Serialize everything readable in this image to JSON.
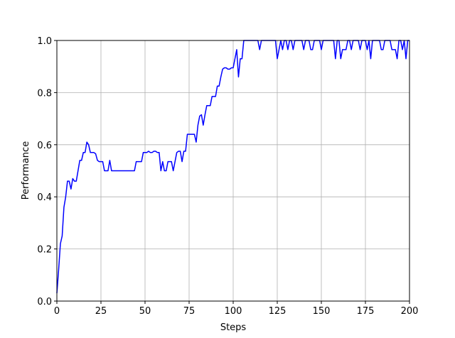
{
  "chart_data": {
    "type": "line",
    "xlabel": "Steps",
    "ylabel": "Performance",
    "x": [
      0,
      1,
      2,
      3,
      4,
      5,
      6,
      7,
      8,
      9,
      10,
      11,
      12,
      13,
      14,
      15,
      16,
      17,
      18,
      19,
      20,
      21,
      22,
      23,
      24,
      25,
      26,
      27,
      28,
      29,
      30,
      31,
      32,
      33,
      34,
      35,
      36,
      37,
      38,
      39,
      40,
      41,
      42,
      43,
      44,
      45,
      46,
      47,
      48,
      49,
      50,
      51,
      52,
      53,
      54,
      55,
      56,
      57,
      58,
      59,
      60,
      61,
      62,
      63,
      64,
      65,
      66,
      67,
      68,
      69,
      70,
      71,
      72,
      73,
      74,
      75,
      76,
      77,
      78,
      79,
      80,
      81,
      82,
      83,
      84,
      85,
      86,
      87,
      88,
      89,
      90,
      91,
      92,
      93,
      94,
      95,
      96,
      97,
      98,
      99,
      100,
      101,
      102,
      103,
      104,
      105,
      106,
      107,
      108,
      109,
      110,
      111,
      112,
      113,
      114,
      115,
      116,
      117,
      118,
      119,
      120,
      121,
      122,
      123,
      124,
      125,
      126,
      127,
      128,
      129,
      130,
      131,
      132,
      133,
      134,
      135,
      136,
      137,
      138,
      139,
      140,
      141,
      142,
      143,
      144,
      145,
      146,
      147,
      148,
      149,
      150,
      151,
      152,
      153,
      154,
      155,
      156,
      157,
      158,
      159,
      160,
      161,
      162,
      163,
      164,
      165,
      166,
      167,
      168,
      169,
      170,
      171,
      172,
      173,
      174,
      175,
      176,
      177,
      178,
      179,
      180,
      181,
      182,
      183,
      184,
      185,
      186,
      187,
      188,
      189,
      190,
      191,
      192,
      193,
      194,
      195,
      196,
      197,
      198,
      199,
      200
    ],
    "values": [
      0.03,
      0.12,
      0.22,
      0.25,
      0.36,
      0.4,
      0.46,
      0.46,
      0.43,
      0.47,
      0.46,
      0.46,
      0.5,
      0.54,
      0.54,
      0.57,
      0.57,
      0.61,
      0.6,
      0.57,
      0.57,
      0.57,
      0.565,
      0.54,
      0.535,
      0.535,
      0.535,
      0.5,
      0.5,
      0.5,
      0.54,
      0.5,
      0.5,
      0.5,
      0.5,
      0.5,
      0.5,
      0.5,
      0.5,
      0.5,
      0.5,
      0.5,
      0.5,
      0.5,
      0.5,
      0.535,
      0.535,
      0.535,
      0.535,
      0.57,
      0.57,
      0.57,
      0.575,
      0.57,
      0.57,
      0.575,
      0.575,
      0.57,
      0.57,
      0.5,
      0.535,
      0.5,
      0.5,
      0.535,
      0.535,
      0.535,
      0.5,
      0.535,
      0.57,
      0.575,
      0.575,
      0.535,
      0.575,
      0.575,
      0.64,
      0.64,
      0.64,
      0.64,
      0.64,
      0.61,
      0.675,
      0.71,
      0.715,
      0.675,
      0.715,
      0.75,
      0.75,
      0.75,
      0.785,
      0.785,
      0.785,
      0.825,
      0.825,
      0.86,
      0.89,
      0.895,
      0.895,
      0.89,
      0.89,
      0.895,
      0.895,
      0.93,
      0.965,
      0.86,
      0.93,
      0.93,
      1,
      1,
      1,
      1,
      1,
      1,
      1,
      1,
      1,
      0.965,
      1,
      1,
      1,
      1,
      1,
      1,
      1,
      1,
      1,
      0.93,
      0.965,
      1,
      0.965,
      1,
      1,
      0.965,
      1,
      1,
      0.965,
      1,
      1,
      1,
      1,
      1,
      0.965,
      1,
      1,
      1,
      0.965,
      0.965,
      1,
      1,
      1,
      1,
      0.965,
      1,
      1,
      1,
      1,
      1,
      1,
      1,
      0.93,
      1,
      1,
      0.93,
      0.965,
      0.965,
      0.965,
      1,
      1,
      0.965,
      1,
      1,
      1,
      1,
      0.965,
      1,
      1,
      1,
      0.965,
      1,
      0.93,
      1,
      1,
      1,
      1,
      1,
      0.965,
      0.965,
      1,
      1,
      1,
      1,
      0.965,
      0.965,
      0.965,
      0.93,
      1,
      1,
      0.965,
      1,
      0.93,
      1,
      1
    ],
    "color": "#0000ff",
    "xlim": [
      0,
      200
    ],
    "xticks": [
      0,
      25,
      50,
      75,
      100,
      125,
      150,
      175,
      200
    ],
    "ylim": [
      0,
      1
    ],
    "yticks": [
      {
        "value": 0,
        "label": "0.0"
      },
      {
        "value": 0.2,
        "label": "0.2"
      },
      {
        "value": 0.4,
        "label": "0.4"
      },
      {
        "value": 0.6,
        "label": "0.6"
      },
      {
        "value": 0.8,
        "label": "0.8"
      },
      {
        "value": 1,
        "label": "1.0"
      }
    ],
    "grid": true
  }
}
